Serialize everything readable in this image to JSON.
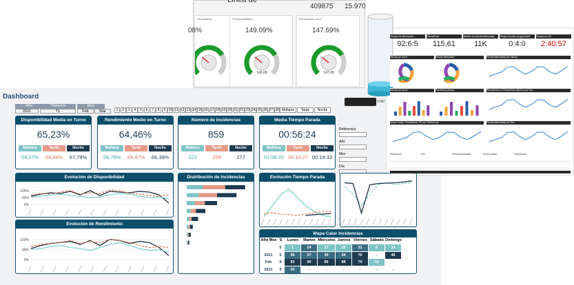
{
  "dashboard": {
    "title": "Dashboard",
    "filters": {
      "labels": [
        "Año",
        "Trimestre",
        "Mes"
      ],
      "values": [
        "2021",
        "T1",
        "Feb",
        "Mar"
      ],
      "days": [
        "1",
        "2",
        "3",
        "4",
        "5",
        "6",
        "7",
        "8",
        "9",
        "10",
        "11",
        "12",
        "13",
        "14",
        "15",
        "16",
        "17",
        "18",
        "19",
        "20",
        "21",
        "22",
        "23",
        "24",
        "25",
        "26",
        "27",
        "28"
      ],
      "shifts": [
        "Mañana",
        "Tarde",
        "Noche"
      ]
    },
    "kpis": [
      {
        "title": "Disponibilidad Media en Turno",
        "value": "65,23%",
        "shifts": [
          "Mañana",
          "Tarde",
          "Noche"
        ],
        "shift_values": [
          "59,37%",
          "69,88%",
          "67,78%"
        ]
      },
      {
        "title": "Rendimiento Medio en Turno",
        "value": "64,46%",
        "shifts": [
          "Mañana",
          "Tarde",
          "Noche"
        ],
        "shift_values": [
          "58,78%",
          "69,47%",
          "66,39%"
        ]
      },
      {
        "title": "Número de incidencias",
        "value": "859",
        "shifts": [
          "Mañana",
          "Tarde",
          "Noche"
        ],
        "shift_values": [
          "323",
          "259",
          "277"
        ]
      },
      {
        "title": "Media Tiempo Parada",
        "value": "00:56:24",
        "shifts": [
          "Mañana",
          "Tarde",
          "Noche"
        ],
        "shift_values": [
          "01:58:20",
          "00:16:27",
          "00:19:33"
        ]
      }
    ],
    "side_filters": [
      "Referencia",
      "Año",
      "Mes",
      "Día"
    ],
    "availability_chart": {
      "type": "line",
      "title": "Evolución de Disponibilidad",
      "ylim": [
        -20,
        130
      ],
      "yticks": [
        {
          "value": 100,
          "label": "100%"
        },
        {
          "value": 50,
          "label": "50%"
        },
        {
          "value": 0,
          "label": "0%"
        }
      ],
      "series": [
        {
          "color": "#1b2a3a",
          "values": [
            60,
            75,
            85,
            80,
            95,
            70,
            100,
            65,
            95,
            90,
            85,
            95,
            90,
            70,
            10
          ]
        },
        {
          "color": "#e07a5f",
          "dashed": true,
          "values": [
            70,
            80,
            75,
            90,
            100,
            75,
            85,
            80,
            105,
            100,
            80,
            75,
            65,
            60,
            70
          ]
        },
        {
          "color": "#7fd0cc",
          "values": [
            55,
            60,
            70,
            75,
            65,
            60,
            50,
            55,
            70,
            80,
            75,
            60,
            50,
            55,
            40
          ]
        }
      ]
    },
    "performance_chart": {
      "type": "line",
      "title": "Evolución de Rendimiento",
      "ylim": [
        -20,
        130
      ],
      "yticks": [
        {
          "value": 100,
          "label": "100%"
        },
        {
          "value": 50,
          "label": "50%"
        },
        {
          "value": 0,
          "label": "0%"
        }
      ],
      "series": [
        {
          "color": "#1b2a3a",
          "values": [
            55,
            70,
            80,
            85,
            90,
            75,
            95,
            70,
            100,
            95,
            80,
            90,
            85,
            60,
            20
          ]
        },
        {
          "color": "#e07a5f",
          "dashed": true,
          "values": [
            65,
            75,
            80,
            85,
            95,
            80,
            90,
            85,
            100,
            95,
            85,
            70,
            60,
            65,
            60
          ]
        },
        {
          "color": "#7fd0cc",
          "values": [
            50,
            55,
            65,
            70,
            60,
            55,
            45,
            60,
            75,
            85,
            70,
            55,
            45,
            50,
            35
          ]
        }
      ]
    },
    "incidents_chart": {
      "type": "bar",
      "title": "Distribución de Incidencias",
      "xlim": [
        0,
        300
      ],
      "series": [
        {
          "color": "#7fc3c6",
          "values": [
            80,
            60,
            40,
            20,
            12,
            8,
            5,
            4
          ]
        },
        {
          "color": "#e39a87",
          "values": [
            110,
            90,
            50,
            25,
            12,
            8,
            5,
            3
          ]
        },
        {
          "color": "#1d3a4f",
          "values": [
            99,
            96,
            60,
            47,
            32,
            14,
            10,
            6
          ]
        }
      ]
    },
    "downtime_chart": {
      "type": "line",
      "title": "Evolución Tiempo Parada",
      "ylim": [
        0,
        110
      ],
      "series": [
        {
          "color": "#7fd0cc",
          "values": [
            0,
            40,
            80,
            100,
            70,
            40,
            20,
            5,
            0
          ]
        },
        {
          "color": "#e07a5f",
          "dashed": true,
          "values": [
            10,
            15,
            10,
            8,
            5,
            10,
            15,
            20,
            20
          ]
        },
        {
          "color": "#1b2a3a",
          "values": [
            null,
            null,
            null,
            null,
            null,
            5,
            8,
            10,
            12
          ]
        }
      ]
    },
    "extra_chart": {
      "type": "line",
      "ylim": [
        0,
        100
      ],
      "series": [
        {
          "color": "#7fd0cc",
          "dashed": true,
          "values": [
            80,
            60,
            30,
            60,
            85,
            90,
            85,
            88,
            90
          ]
        },
        {
          "color": "#1b2a3a",
          "values": [
            90,
            88,
            10,
            85,
            88,
            89,
            90,
            92,
            95
          ]
        }
      ]
    },
    "heatmap": {
      "title": "Mapa Calor Incidencias",
      "columns": [
        "Año Mes",
        "S",
        "Lunes",
        "Martes",
        "Miércoles",
        "Jueves",
        "Viernes",
        "Sábado",
        "Domingo"
      ],
      "rows": [
        [
          null,
          "5",
          "1",
          "24",
          "17",
          "20",
          "31",
          "6",
          "14"
        ],
        [
          "2021 Feb",
          "6",
          "36",
          "27",
          "39",
          "34",
          "76",
          "-",
          "46"
        ],
        [
          null,
          "8",
          "92",
          "90",
          "86",
          "88",
          "79",
          "16",
          "-"
        ],
        [
          "2021 Mar",
          "9",
          "30",
          "-",
          "-",
          "-",
          "-",
          "-",
          "-"
        ]
      ]
    }
  },
  "line_overview": {
    "title": "Línea de Fabricación",
    "totals": [
      "409875",
      "15.970"
    ],
    "gauges": [
      {
        "title": "Rendimiento",
        "value": "08%"
      },
      {
        "title": "% Disponibilidad",
        "value": "149.09%",
        "needle": "149.08"
      },
      {
        "title": "Rendimiento turno",
        "value": "147.69%",
        "needle": "147.69"
      }
    ],
    "tank": "5740"
  },
  "production": {
    "kpis": [
      {
        "label": "Tiempo de fabricación",
        "value": "92:6:5"
      },
      {
        "label": "PiezasHora",
        "value": "115,61"
      },
      {
        "label": "Número de piezas fabricadas",
        "value": "11K"
      },
      {
        "label": "Tiempo de paro programado",
        "value": "0:4:0"
      },
      {
        "label": "Tiempo no OK",
        "value": "2:40:57"
      }
    ],
    "charts": [
      "Piezas por línea",
      "Piezas fabricadas",
      "Piezas fabricadas por minuto",
      "Piezas por turno",
      "Tendencia piezas",
      "PiezasHora vs PiezasHora objetivo por Día",
      "Horas Orden, PiezasHora, PF por Referencia",
      "Piezas fabricadas por Día"
    ],
    "table": [
      "Referencia",
      "Día",
      "Piezas fabricadas",
      "Horas Orden",
      "PiezasHora"
    ]
  }
}
